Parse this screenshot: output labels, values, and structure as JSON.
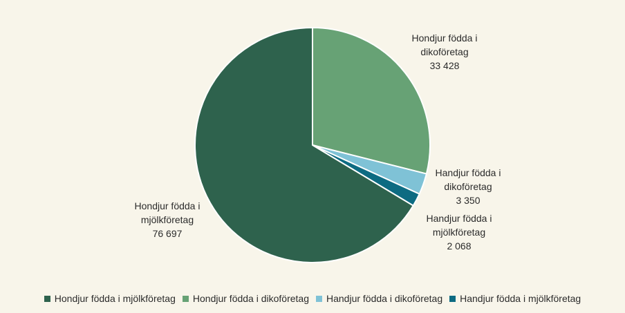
{
  "chart_data": {
    "type": "pie",
    "title": "",
    "slices": [
      {
        "name": "Hondjur födda i mjölkföretag",
        "value": 76697,
        "display": "76 697",
        "label_lines": [
          "Hondjur födda i",
          "mjölkföretag"
        ],
        "color": "#2e624d"
      },
      {
        "name": "Hondjur födda i dikoföretag",
        "value": 33428,
        "display": "33 428",
        "label_lines": [
          "Hondjur födda i",
          "dikoföretag"
        ],
        "color": "#67a275"
      },
      {
        "name": "Handjur födda i dikoföretag",
        "value": 3350,
        "display": "3 350",
        "label_lines": [
          "Handjur födda i",
          "dikoföretag"
        ],
        "color": "#7fc2d6"
      },
      {
        "name": "Handjur födda i mjölkföretag",
        "value": 2068,
        "display": "2 068",
        "label_lines": [
          "Handjur födda i",
          "mjölkföretag"
        ],
        "color": "#0d6b82"
      }
    ],
    "legend_position": "bottom"
  }
}
